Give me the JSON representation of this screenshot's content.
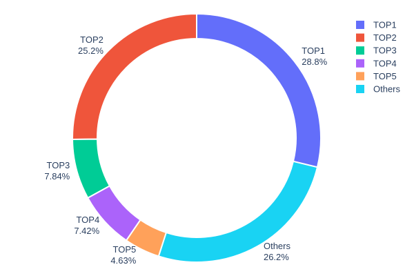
{
  "chart_data": {
    "type": "pie",
    "hole": 0.8,
    "labels": [
      "TOP1",
      "TOP2",
      "TOP3",
      "TOP4",
      "TOP5",
      "Others"
    ],
    "values": [
      28.8,
      25.2,
      7.84,
      7.42,
      4.63,
      26.2
    ],
    "percent_labels": [
      "28.8%",
      "25.2%",
      "7.84%",
      "7.42%",
      "4.63%",
      "26.2%"
    ],
    "colors": [
      "#636efa",
      "#ef553b",
      "#00cc96",
      "#ab63fa",
      "#ffa15a",
      "#19d3f3"
    ],
    "slice_border_color": "#ffffff",
    "text_color": "#2a3f5f",
    "background": "#ffffff",
    "title": "",
    "label_position": "outside",
    "legend": {
      "position": "right",
      "entries": [
        "TOP1",
        "TOP2",
        "TOP3",
        "TOP4",
        "TOP5",
        "Others"
      ]
    },
    "clockwise_order_from_top": [
      "TOP1",
      "Others",
      "TOP5",
      "TOP4",
      "TOP3",
      "TOP2"
    ]
  }
}
